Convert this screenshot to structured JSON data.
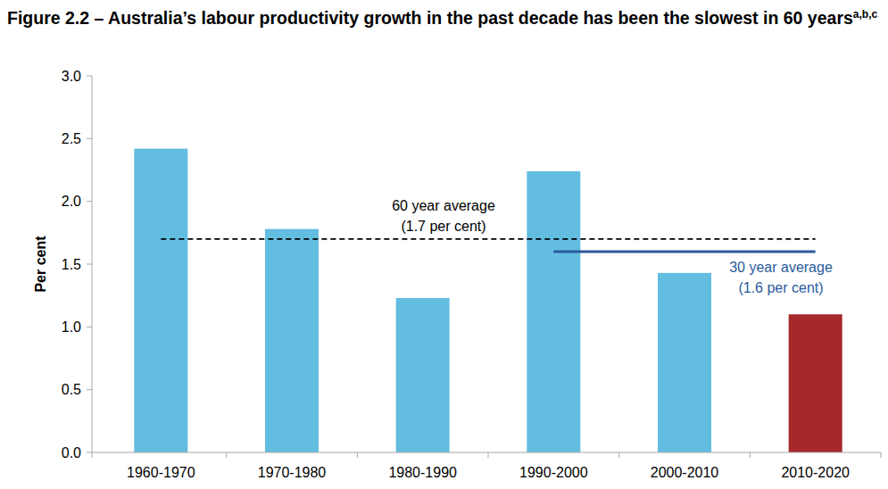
{
  "chart_data": {
    "type": "bar",
    "title": "Figure 2.2 – Australia’s labour productivity growth in the past decade has been the slowest in 60 years",
    "title_footnote_marks": "a,b,c",
    "y_label": "Per cent",
    "categories": [
      "1960-1970",
      "1970-1980",
      "1980-1990",
      "1990-2000",
      "2000-2010",
      "2010-2020"
    ],
    "values": [
      2.42,
      1.78,
      1.23,
      2.24,
      1.43,
      1.1
    ],
    "colors": [
      "#63bde0",
      "#63bde0",
      "#63bde0",
      "#63bde0",
      "#63bde0",
      "#a6282b"
    ],
    "ylim": [
      0,
      3
    ],
    "yticks": [
      {
        "value": 0,
        "label": "0.0"
      },
      0.5,
      {
        "value": 1,
        "label": "1.0"
      },
      1.5,
      {
        "value": 2,
        "label": "2.0"
      },
      2.5,
      {
        "value": 3,
        "label": "3.0"
      }
    ],
    "grid": false,
    "reference_lines": [
      {
        "label": "60 year average",
        "sublabel": "(1.7 per cent)",
        "value": 1.7,
        "from": "1960-1970",
        "to": "2010-2020",
        "color": "#000000",
        "line_style": "dashed"
      },
      {
        "label": "30 year average",
        "sublabel": "(1.6 per cent)",
        "value": 1.6,
        "from": "1990-2000",
        "to": "2010-2020",
        "color": "#2a5b9c",
        "line_style": "solid"
      }
    ]
  }
}
